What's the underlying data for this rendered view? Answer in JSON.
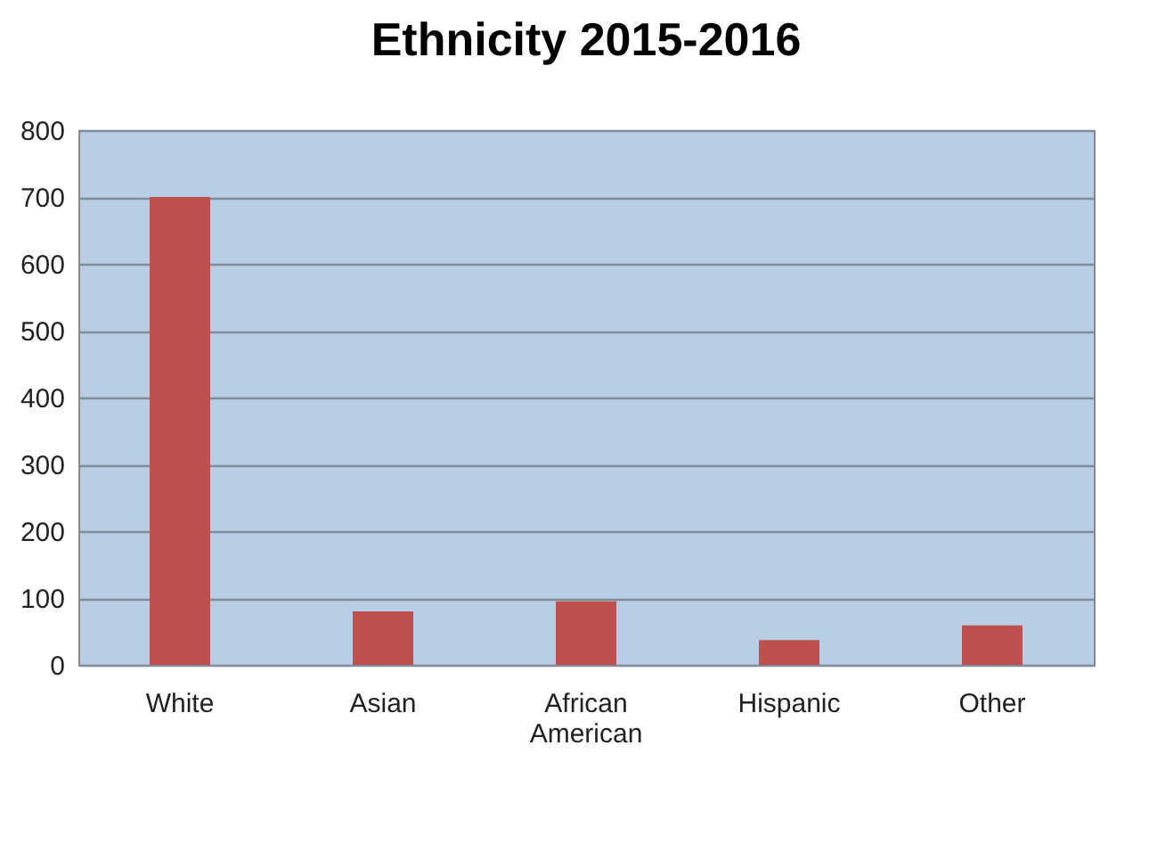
{
  "chart_data": {
    "type": "bar",
    "title": "Ethnicity 2015-2016",
    "categories": [
      "White",
      "Asian",
      "African American",
      "Hispanic",
      "Other"
    ],
    "values": [
      700,
      80,
      95,
      37,
      59
    ],
    "color": "#c0504d",
    "ylim": [
      0,
      800
    ],
    "yticks": [
      0,
      100,
      200,
      300,
      400,
      500,
      600,
      700,
      800
    ],
    "grid": "y"
  }
}
